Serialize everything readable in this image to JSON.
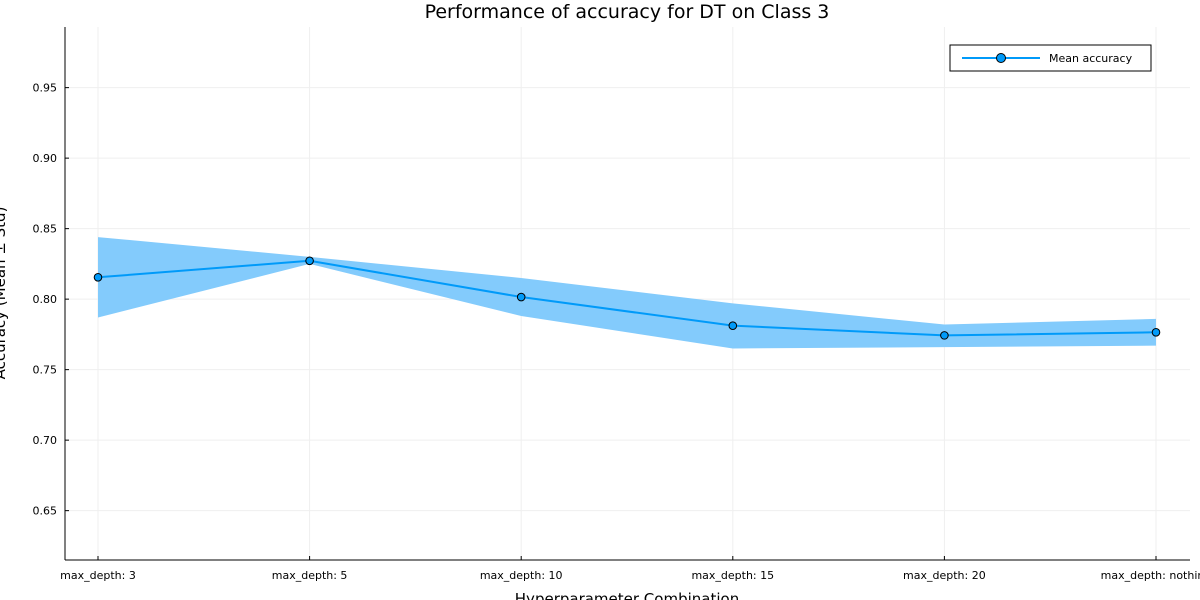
{
  "chart_data": {
    "type": "line",
    "title": "Performance of accuracy for DT on Class 3",
    "xlabel": "Hyperparameter Combination",
    "ylabel": "Accuracy (Mean ± Std)",
    "categories": [
      "max_depth: 3",
      "max_depth: 5",
      "max_depth: 10",
      "max_depth: 15",
      "max_depth: 20",
      "max_depth: nothing"
    ],
    "series": [
      {
        "name": "Mean accuracy",
        "values": [
          0.8155,
          0.8272,
          0.8015,
          0.7812,
          0.7743,
          0.7765
        ],
        "lower": [
          0.787,
          0.825,
          0.788,
          0.765,
          0.766,
          0.767
        ],
        "upper": [
          0.844,
          0.83,
          0.815,
          0.797,
          0.782,
          0.786
        ]
      }
    ],
    "ylim": [
      0.615,
      0.993
    ],
    "yticks": [
      0.65,
      0.7,
      0.75,
      0.8,
      0.85,
      0.9,
      0.95
    ],
    "ytick_labels": [
      "0.65",
      "0.70",
      "0.75",
      "0.80",
      "0.85",
      "0.90",
      "0.95"
    ],
    "grid": true,
    "legend_position": "top-right",
    "colors": {
      "line": "#009AF9",
      "band": "#83CBFC",
      "marker_edge": "#000000",
      "grid": "#EFEFEF",
      "axis": "#000000"
    }
  }
}
